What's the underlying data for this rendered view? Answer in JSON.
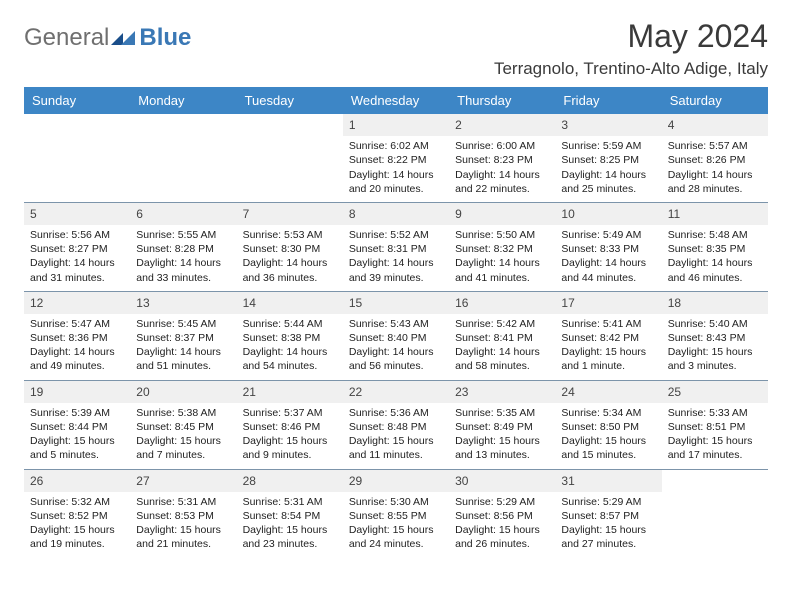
{
  "brand": {
    "part1": "General",
    "part2": "Blue"
  },
  "title": "May 2024",
  "location": "Terragnolo, Trentino-Alto Adige, Italy",
  "colors": {
    "header_bg": "#3d86c6",
    "header_fg": "#ffffff",
    "daynum_bg": "#f0f0f0",
    "rule": "#7c94aa",
    "brand_gray": "#6f6f6f",
    "brand_blue": "#3a78b5"
  },
  "day_labels": [
    "Sunday",
    "Monday",
    "Tuesday",
    "Wednesday",
    "Thursday",
    "Friday",
    "Saturday"
  ],
  "weeks": [
    [
      {
        "n": "",
        "blank": true
      },
      {
        "n": "",
        "blank": true
      },
      {
        "n": "",
        "blank": true
      },
      {
        "n": "1",
        "sunrise": "6:02 AM",
        "sunset": "8:22 PM",
        "daylight": "14 hours and 20 minutes."
      },
      {
        "n": "2",
        "sunrise": "6:00 AM",
        "sunset": "8:23 PM",
        "daylight": "14 hours and 22 minutes."
      },
      {
        "n": "3",
        "sunrise": "5:59 AM",
        "sunset": "8:25 PM",
        "daylight": "14 hours and 25 minutes."
      },
      {
        "n": "4",
        "sunrise": "5:57 AM",
        "sunset": "8:26 PM",
        "daylight": "14 hours and 28 minutes."
      }
    ],
    [
      {
        "n": "5",
        "sunrise": "5:56 AM",
        "sunset": "8:27 PM",
        "daylight": "14 hours and 31 minutes."
      },
      {
        "n": "6",
        "sunrise": "5:55 AM",
        "sunset": "8:28 PM",
        "daylight": "14 hours and 33 minutes."
      },
      {
        "n": "7",
        "sunrise": "5:53 AM",
        "sunset": "8:30 PM",
        "daylight": "14 hours and 36 minutes."
      },
      {
        "n": "8",
        "sunrise": "5:52 AM",
        "sunset": "8:31 PM",
        "daylight": "14 hours and 39 minutes."
      },
      {
        "n": "9",
        "sunrise": "5:50 AM",
        "sunset": "8:32 PM",
        "daylight": "14 hours and 41 minutes."
      },
      {
        "n": "10",
        "sunrise": "5:49 AM",
        "sunset": "8:33 PM",
        "daylight": "14 hours and 44 minutes."
      },
      {
        "n": "11",
        "sunrise": "5:48 AM",
        "sunset": "8:35 PM",
        "daylight": "14 hours and 46 minutes."
      }
    ],
    [
      {
        "n": "12",
        "sunrise": "5:47 AM",
        "sunset": "8:36 PM",
        "daylight": "14 hours and 49 minutes."
      },
      {
        "n": "13",
        "sunrise": "5:45 AM",
        "sunset": "8:37 PM",
        "daylight": "14 hours and 51 minutes."
      },
      {
        "n": "14",
        "sunrise": "5:44 AM",
        "sunset": "8:38 PM",
        "daylight": "14 hours and 54 minutes."
      },
      {
        "n": "15",
        "sunrise": "5:43 AM",
        "sunset": "8:40 PM",
        "daylight": "14 hours and 56 minutes."
      },
      {
        "n": "16",
        "sunrise": "5:42 AM",
        "sunset": "8:41 PM",
        "daylight": "14 hours and 58 minutes."
      },
      {
        "n": "17",
        "sunrise": "5:41 AM",
        "sunset": "8:42 PM",
        "daylight": "15 hours and 1 minute."
      },
      {
        "n": "18",
        "sunrise": "5:40 AM",
        "sunset": "8:43 PM",
        "daylight": "15 hours and 3 minutes."
      }
    ],
    [
      {
        "n": "19",
        "sunrise": "5:39 AM",
        "sunset": "8:44 PM",
        "daylight": "15 hours and 5 minutes."
      },
      {
        "n": "20",
        "sunrise": "5:38 AM",
        "sunset": "8:45 PM",
        "daylight": "15 hours and 7 minutes."
      },
      {
        "n": "21",
        "sunrise": "5:37 AM",
        "sunset": "8:46 PM",
        "daylight": "15 hours and 9 minutes."
      },
      {
        "n": "22",
        "sunrise": "5:36 AM",
        "sunset": "8:48 PM",
        "daylight": "15 hours and 11 minutes."
      },
      {
        "n": "23",
        "sunrise": "5:35 AM",
        "sunset": "8:49 PM",
        "daylight": "15 hours and 13 minutes."
      },
      {
        "n": "24",
        "sunrise": "5:34 AM",
        "sunset": "8:50 PM",
        "daylight": "15 hours and 15 minutes."
      },
      {
        "n": "25",
        "sunrise": "5:33 AM",
        "sunset": "8:51 PM",
        "daylight": "15 hours and 17 minutes."
      }
    ],
    [
      {
        "n": "26",
        "sunrise": "5:32 AM",
        "sunset": "8:52 PM",
        "daylight": "15 hours and 19 minutes."
      },
      {
        "n": "27",
        "sunrise": "5:31 AM",
        "sunset": "8:53 PM",
        "daylight": "15 hours and 21 minutes."
      },
      {
        "n": "28",
        "sunrise": "5:31 AM",
        "sunset": "8:54 PM",
        "daylight": "15 hours and 23 minutes."
      },
      {
        "n": "29",
        "sunrise": "5:30 AM",
        "sunset": "8:55 PM",
        "daylight": "15 hours and 24 minutes."
      },
      {
        "n": "30",
        "sunrise": "5:29 AM",
        "sunset": "8:56 PM",
        "daylight": "15 hours and 26 minutes."
      },
      {
        "n": "31",
        "sunrise": "5:29 AM",
        "sunset": "8:57 PM",
        "daylight": "15 hours and 27 minutes."
      },
      {
        "n": "",
        "blank": true
      }
    ]
  ],
  "labels": {
    "sunrise": "Sunrise: ",
    "sunset": "Sunset: ",
    "daylight": "Daylight: "
  }
}
